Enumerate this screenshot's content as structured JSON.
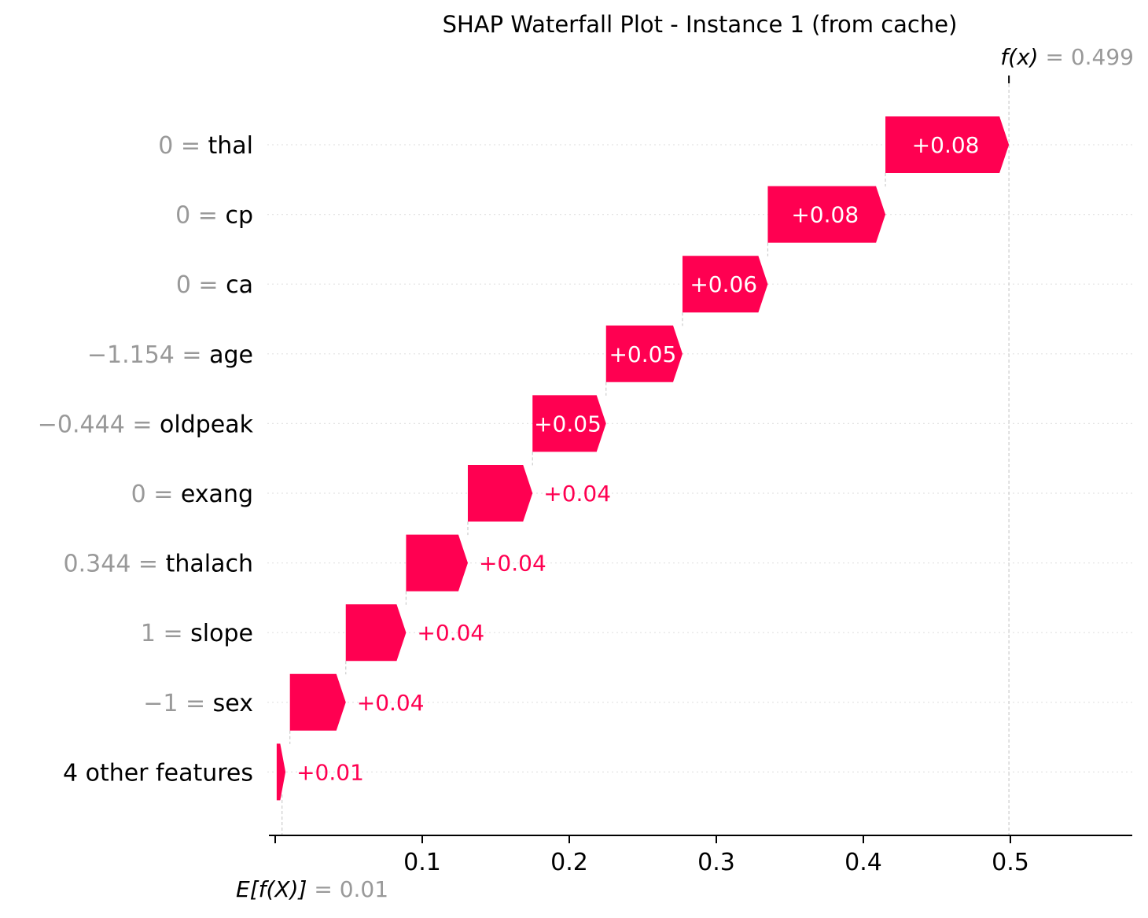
{
  "chart_data": {
    "type": "waterfall",
    "title": "SHAP Waterfall Plot - Instance 1 (from cache)",
    "base_value_label": "E[f(X)]",
    "base_value": 0.01,
    "base_value_text": "= 0.01",
    "output_value_label": "f(x)",
    "output_value": 0.499,
    "output_value_text": "= 0.499",
    "xlim": [
      0.0,
      0.57
    ],
    "xticks": [
      {
        "value": 0.0,
        "label": ""
      },
      {
        "value": 0.1,
        "label": "0.1"
      },
      {
        "value": 0.2,
        "label": "0.2"
      },
      {
        "value": 0.3,
        "label": "0.3"
      },
      {
        "value": 0.4,
        "label": "0.4"
      },
      {
        "value": 0.5,
        "label": "0.5"
      }
    ],
    "features": [
      {
        "value_text": "0",
        "name": "thal",
        "start": 0.415,
        "end": 0.499,
        "shap_label": "+0.08",
        "label_inside": true
      },
      {
        "value_text": "0",
        "name": "cp",
        "start": 0.335,
        "end": 0.415,
        "shap_label": "+0.08",
        "label_inside": true
      },
      {
        "value_text": "0",
        "name": "ca",
        "start": 0.277,
        "end": 0.335,
        "shap_label": "+0.06",
        "label_inside": true
      },
      {
        "value_text": "−1.154",
        "name": "age",
        "start": 0.225,
        "end": 0.277,
        "shap_label": "+0.05",
        "label_inside": true
      },
      {
        "value_text": "−0.444",
        "name": "oldpeak",
        "start": 0.175,
        "end": 0.225,
        "shap_label": "+0.05",
        "label_inside": true
      },
      {
        "value_text": "0",
        "name": "exang",
        "start": 0.131,
        "end": 0.175,
        "shap_label": "+0.04",
        "label_inside": false
      },
      {
        "value_text": "0.344",
        "name": "thalach",
        "start": 0.089,
        "end": 0.131,
        "shap_label": "+0.04",
        "label_inside": false
      },
      {
        "value_text": "1",
        "name": "slope",
        "start": 0.048,
        "end": 0.089,
        "shap_label": "+0.04",
        "label_inside": false
      },
      {
        "value_text": "−1",
        "name": "sex",
        "start": 0.01,
        "end": 0.048,
        "shap_label": "+0.04",
        "label_inside": false
      },
      {
        "value_text": "",
        "name": "4 other features",
        "start": 0.001,
        "end": 0.007,
        "shap_label": "+0.01",
        "label_inside": false
      }
    ],
    "colors": {
      "positive": "#ff0051",
      "value_text": "#999999",
      "gridline": "#cccccc",
      "axis": "#000000"
    }
  }
}
